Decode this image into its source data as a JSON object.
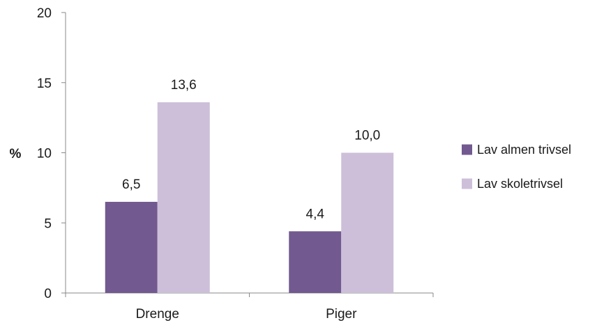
{
  "chart_data": {
    "type": "bar",
    "categories": [
      "Drenge",
      "Piger"
    ],
    "series": [
      {
        "name": "Lav almen trivsel",
        "values": [
          6.5,
          4.4
        ],
        "labels": [
          "6,5",
          "4,4"
        ],
        "color": "#72598f"
      },
      {
        "name": "Lav skoletrivsel",
        "values": [
          13.6,
          10.0
        ],
        "labels": [
          "13,6",
          "10,0"
        ],
        "color": "#cdbfd9"
      }
    ],
    "title": "",
    "xlabel": "",
    "ylabel": "%",
    "ylim": [
      0,
      20
    ],
    "yticks": [
      0,
      5,
      10,
      15,
      20
    ],
    "ytick_labels": [
      "0",
      "5",
      "10",
      "15",
      "20"
    ],
    "grid": false,
    "legend_position": "right"
  }
}
